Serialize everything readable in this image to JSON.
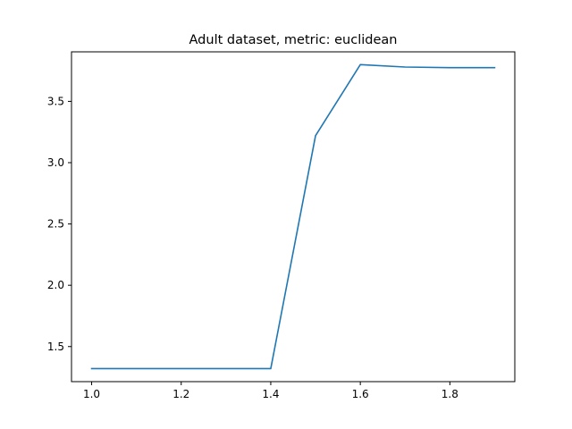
{
  "chart_data": {
    "type": "line",
    "title": "Adult dataset, metric: euclidean",
    "xlabel": "",
    "ylabel": "",
    "xlim": [
      0.955,
      1.945
    ],
    "ylim": [
      1.214,
      3.904
    ],
    "x_ticks": [
      1.0,
      1.2,
      1.4,
      1.6,
      1.8
    ],
    "x_tick_labels": [
      "1.0",
      "1.2",
      "1.4",
      "1.6",
      "1.8"
    ],
    "y_ticks": [
      1.5,
      2.0,
      2.5,
      3.0,
      3.5
    ],
    "y_tick_labels": [
      "1.5",
      "2.0",
      "2.5",
      "3.0",
      "3.5"
    ],
    "grid": false,
    "series": [
      {
        "color": "#1f77b4",
        "x": [
          1.0,
          1.1,
          1.2,
          1.3,
          1.4,
          1.5,
          1.6,
          1.7,
          1.8,
          1.9
        ],
        "y": [
          1.32,
          1.32,
          1.32,
          1.32,
          1.32,
          3.22,
          3.8,
          3.78,
          3.775,
          3.775
        ]
      }
    ]
  }
}
